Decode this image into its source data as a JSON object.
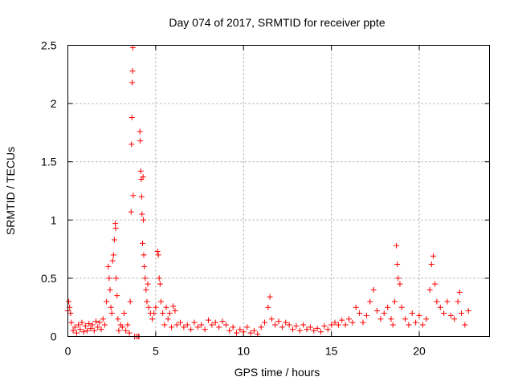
{
  "chart_data": {
    "type": "scatter",
    "title": "Day 074 of 2017, SRMTID for receiver ppte",
    "xlabel": "GPS time / hours",
    "ylabel": "SRMTID / TECUs",
    "xlim": [
      0,
      24
    ],
    "ylim": [
      0,
      2.5
    ],
    "xticks": [
      0,
      5,
      10,
      15,
      20
    ],
    "yticks": [
      0,
      0.5,
      1,
      1.5,
      2,
      2.5
    ],
    "xtick_labels": [
      "0",
      "5",
      "10",
      "15",
      "20"
    ],
    "ytick_labels": [
      "0",
      "0.5",
      "1",
      "1.5",
      "2",
      "2.5"
    ],
    "grid": true,
    "marker": "plus",
    "color": "#ff0000",
    "series": [
      {
        "name": "SRMTID",
        "points": [
          [
            0.0,
            0.22
          ],
          [
            0.05,
            0.3
          ],
          [
            0.1,
            0.25
          ],
          [
            0.15,
            0.2
          ],
          [
            0.2,
            0.12
          ],
          [
            0.3,
            0.05
          ],
          [
            0.4,
            0.08
          ],
          [
            0.5,
            0.03
          ],
          [
            0.6,
            0.1
          ],
          [
            0.7,
            0.06
          ],
          [
            0.8,
            0.12
          ],
          [
            0.9,
            0.04
          ],
          [
            1.0,
            0.09
          ],
          [
            1.1,
            0.05
          ],
          [
            1.2,
            0.11
          ],
          [
            1.3,
            0.07
          ],
          [
            1.4,
            0.1
          ],
          [
            1.5,
            0.05
          ],
          [
            1.6,
            0.13
          ],
          [
            1.7,
            0.08
          ],
          [
            1.8,
            0.12
          ],
          [
            1.9,
            0.06
          ],
          [
            2.0,
            0.15
          ],
          [
            2.1,
            0.1
          ],
          [
            2.2,
            0.3
          ],
          [
            2.3,
            0.6
          ],
          [
            2.35,
            0.5
          ],
          [
            2.4,
            0.4
          ],
          [
            2.45,
            0.25
          ],
          [
            2.5,
            0.2
          ],
          [
            2.55,
            0.65
          ],
          [
            2.6,
            0.7
          ],
          [
            2.65,
            0.83
          ],
          [
            2.7,
            0.97
          ],
          [
            2.72,
            0.93
          ],
          [
            2.75,
            0.5
          ],
          [
            2.8,
            0.35
          ],
          [
            2.85,
            0.15
          ],
          [
            2.9,
            0.05
          ],
          [
            3.0,
            0.1
          ],
          [
            3.1,
            0.08
          ],
          [
            3.2,
            0.2
          ],
          [
            3.3,
            0.05
          ],
          [
            3.4,
            0.1
          ],
          [
            3.5,
            0.03
          ],
          [
            3.55,
            0.3
          ],
          [
            3.6,
            1.07
          ],
          [
            3.62,
            1.65
          ],
          [
            3.64,
            1.88
          ],
          [
            3.66,
            2.18
          ],
          [
            3.68,
            2.28
          ],
          [
            3.7,
            2.48
          ],
          [
            3.72,
            1.21
          ],
          [
            3.8,
            0.0
          ],
          [
            3.9,
            0.0
          ],
          [
            4.0,
            0.0
          ],
          [
            4.05,
            0.0
          ],
          [
            4.1,
            1.76
          ],
          [
            4.12,
            1.68
          ],
          [
            4.15,
            1.42
          ],
          [
            4.18,
            1.35
          ],
          [
            4.2,
            1.2
          ],
          [
            4.22,
            1.05
          ],
          [
            4.25,
            0.8
          ],
          [
            4.28,
            1.37
          ],
          [
            4.3,
            1.0
          ],
          [
            4.32,
            0.7
          ],
          [
            4.35,
            0.6
          ],
          [
            4.4,
            0.5
          ],
          [
            4.45,
            0.4
          ],
          [
            4.5,
            0.3
          ],
          [
            4.55,
            0.45
          ],
          [
            4.6,
            0.25
          ],
          [
            4.7,
            0.2
          ],
          [
            4.8,
            0.15
          ],
          [
            4.9,
            0.2
          ],
          [
            5.0,
            0.25
          ],
          [
            5.1,
            0.73
          ],
          [
            5.15,
            0.7
          ],
          [
            5.2,
            0.5
          ],
          [
            5.25,
            0.45
          ],
          [
            5.3,
            0.3
          ],
          [
            5.4,
            0.2
          ],
          [
            5.5,
            0.1
          ],
          [
            5.6,
            0.25
          ],
          [
            5.7,
            0.15
          ],
          [
            5.8,
            0.2
          ],
          [
            5.9,
            0.08
          ],
          [
            6.0,
            0.26
          ],
          [
            6.1,
            0.22
          ],
          [
            6.2,
            0.1
          ],
          [
            6.4,
            0.12
          ],
          [
            6.6,
            0.08
          ],
          [
            6.8,
            0.1
          ],
          [
            7.0,
            0.06
          ],
          [
            7.2,
            0.12
          ],
          [
            7.4,
            0.08
          ],
          [
            7.6,
            0.1
          ],
          [
            7.8,
            0.06
          ],
          [
            8.0,
            0.14
          ],
          [
            8.2,
            0.1
          ],
          [
            8.4,
            0.12
          ],
          [
            8.6,
            0.08
          ],
          [
            8.8,
            0.13
          ],
          [
            9.0,
            0.1
          ],
          [
            9.2,
            0.05
          ],
          [
            9.4,
            0.08
          ],
          [
            9.6,
            0.03
          ],
          [
            9.8,
            0.06
          ],
          [
            10.0,
            0.04
          ],
          [
            10.2,
            0.08
          ],
          [
            10.4,
            0.03
          ],
          [
            10.6,
            0.05
          ],
          [
            10.8,
            0.02
          ],
          [
            11.0,
            0.08
          ],
          [
            11.2,
            0.12
          ],
          [
            11.4,
            0.25
          ],
          [
            11.5,
            0.34
          ],
          [
            11.6,
            0.15
          ],
          [
            11.8,
            0.1
          ],
          [
            12.0,
            0.13
          ],
          [
            12.2,
            0.08
          ],
          [
            12.4,
            0.12
          ],
          [
            12.6,
            0.1
          ],
          [
            12.8,
            0.06
          ],
          [
            13.0,
            0.09
          ],
          [
            13.2,
            0.05
          ],
          [
            13.4,
            0.1
          ],
          [
            13.6,
            0.06
          ],
          [
            13.8,
            0.08
          ],
          [
            14.0,
            0.05
          ],
          [
            14.2,
            0.07
          ],
          [
            14.4,
            0.04
          ],
          [
            14.6,
            0.09
          ],
          [
            14.8,
            0.06
          ],
          [
            15.0,
            0.1
          ],
          [
            15.2,
            0.12
          ],
          [
            15.4,
            0.1
          ],
          [
            15.6,
            0.14
          ],
          [
            15.8,
            0.1
          ],
          [
            16.0,
            0.15
          ],
          [
            16.2,
            0.12
          ],
          [
            16.4,
            0.25
          ],
          [
            16.6,
            0.2
          ],
          [
            16.8,
            0.12
          ],
          [
            17.0,
            0.18
          ],
          [
            17.2,
            0.3
          ],
          [
            17.4,
            0.4
          ],
          [
            17.6,
            0.22
          ],
          [
            17.8,
            0.15
          ],
          [
            18.0,
            0.2
          ],
          [
            18.2,
            0.25
          ],
          [
            18.4,
            0.15
          ],
          [
            18.5,
            0.1
          ],
          [
            18.6,
            0.3
          ],
          [
            18.7,
            0.78
          ],
          [
            18.75,
            0.62
          ],
          [
            18.8,
            0.5
          ],
          [
            18.9,
            0.45
          ],
          [
            19.0,
            0.25
          ],
          [
            19.2,
            0.15
          ],
          [
            19.4,
            0.1
          ],
          [
            19.6,
            0.2
          ],
          [
            19.8,
            0.12
          ],
          [
            20.0,
            0.18
          ],
          [
            20.2,
            0.1
          ],
          [
            20.4,
            0.15
          ],
          [
            20.6,
            0.4
          ],
          [
            20.7,
            0.62
          ],
          [
            20.8,
            0.69
          ],
          [
            20.9,
            0.45
          ],
          [
            21.0,
            0.3
          ],
          [
            21.2,
            0.25
          ],
          [
            21.4,
            0.2
          ],
          [
            21.6,
            0.3
          ],
          [
            21.8,
            0.18
          ],
          [
            22.0,
            0.15
          ],
          [
            22.2,
            0.3
          ],
          [
            22.3,
            0.38
          ],
          [
            22.4,
            0.2
          ],
          [
            22.6,
            0.1
          ],
          [
            22.8,
            0.22
          ]
        ]
      }
    ]
  }
}
